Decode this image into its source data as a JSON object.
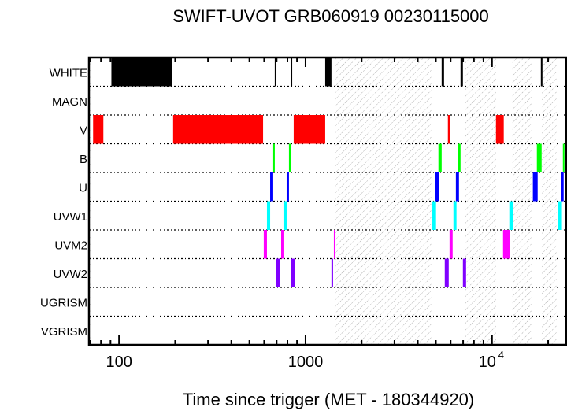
{
  "chart_data": {
    "type": "timeline",
    "title": "SWIFT-UVOT GRB060919 00230115000",
    "xlabel": "Time since trigger (MET - 180344920)",
    "xscale": "log",
    "xlim": [
      69,
      25000
    ],
    "xticks": [
      {
        "value": 100,
        "label": "100"
      },
      {
        "value": 1000,
        "label": "1000"
      },
      {
        "value": 10000,
        "label": "10",
        "sup": "4"
      }
    ],
    "hatched_intervals": [
      [
        1432,
        4780
      ],
      [
        7190,
        10500
      ],
      [
        12880,
        16250
      ],
      [
        18450,
        22180
      ]
    ],
    "rows": [
      {
        "name": "WHITE",
        "color": "#000000",
        "intervals": [
          [
            91,
            192
          ],
          [
            684,
            698
          ],
          [
            832,
            839
          ],
          [
            1275,
            1377
          ],
          [
            5370,
            5530
          ],
          [
            6780,
            6980
          ],
          [
            18280,
            18620
          ]
        ]
      },
      {
        "name": "MAGN",
        "color": "#000000",
        "intervals": []
      },
      {
        "name": "V",
        "color": "#ff0000",
        "intervals": [
          [
            72.6,
            82.4
          ],
          [
            195,
            592
          ],
          [
            864,
            1275
          ],
          [
            5800,
            5970
          ],
          [
            10500,
            11560
          ]
        ]
      },
      {
        "name": "B",
        "color": "#00ff00",
        "intervals": [
          [
            671,
            684
          ],
          [
            815,
            832
          ],
          [
            5160,
            5370
          ],
          [
            6590,
            6780
          ],
          [
            17400,
            18450
          ],
          [
            23990,
            24220
          ]
        ]
      },
      {
        "name": "U",
        "color": "#0000ff",
        "intervals": [
          [
            646,
            671
          ],
          [
            792,
            815
          ],
          [
            4970,
            5210
          ],
          [
            6400,
            6650
          ],
          [
            16560,
            17570
          ],
          [
            23480,
            24220
          ]
        ]
      },
      {
        "name": "UVW1",
        "color": "#00ffff",
        "intervals": [
          [
            621,
            646
          ],
          [
            769,
            792
          ],
          [
            4780,
            5010
          ],
          [
            6210,
            6450
          ],
          [
            12380,
            13000
          ],
          [
            22590,
            23710
          ]
        ]
      },
      {
        "name": "UVM2",
        "color": "#ff00ff",
        "intervals": [
          [
            597,
            621
          ],
          [
            740,
            769
          ],
          [
            1419,
            1446
          ],
          [
            5920,
            6150
          ],
          [
            11460,
            12500
          ]
        ]
      },
      {
        "name": "UVW2",
        "color": "#8000ff",
        "intervals": [
          [
            698,
            726
          ],
          [
            839,
            873
          ],
          [
            1377,
            1405
          ],
          [
            5580,
            5860
          ],
          [
            6980,
            7260
          ]
        ]
      },
      {
        "name": "UGRISM",
        "color": "#000000",
        "intervals": []
      },
      {
        "name": "VGRISM",
        "color": "#000000",
        "intervals": []
      }
    ]
  }
}
